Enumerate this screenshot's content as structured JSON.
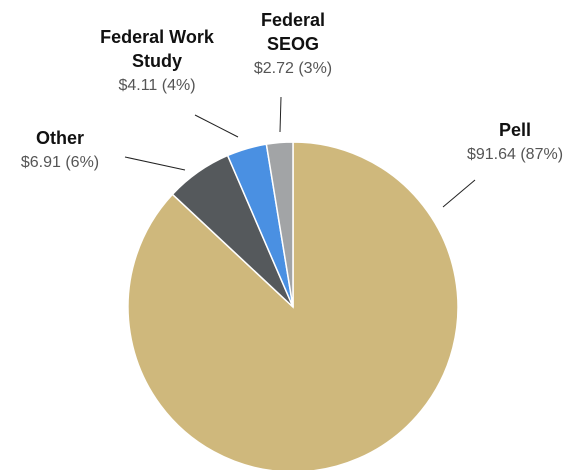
{
  "chart_data": {
    "type": "pie",
    "categories": [
      "Pell",
      "Other",
      "Federal Work Study",
      "Federal SEOG"
    ],
    "values": [
      91.64,
      6.91,
      4.11,
      2.72
    ],
    "value_labels": [
      "$91.64 (87%)",
      "$6.91 (6%)",
      "$4.11 (4%)",
      "$2.72 (3%)"
    ],
    "colors": [
      "#cfb87c",
      "#55595c",
      "#4a90e2",
      "#a2a4a6"
    ]
  }
}
